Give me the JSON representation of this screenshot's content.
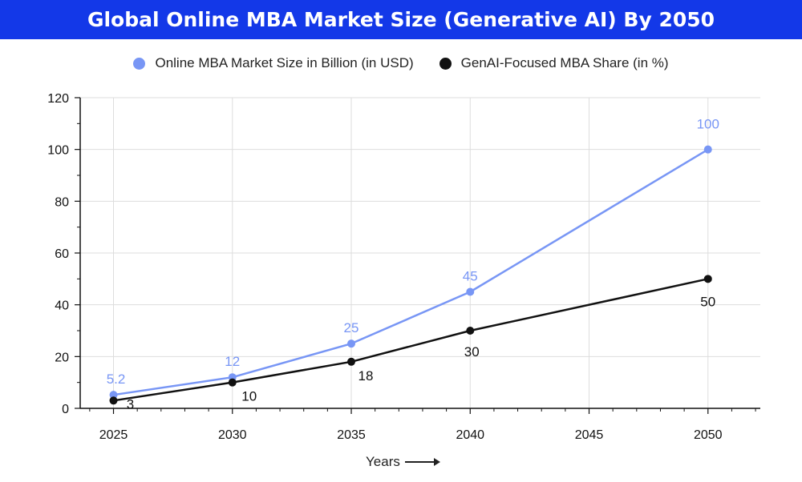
{
  "colors": {
    "title_bg": "#1338e8",
    "series_market": "#7896f5",
    "series_share": "#111111",
    "grid": "#dddddd"
  },
  "chart_data": {
    "type": "line",
    "title": "Global Online MBA Market Size (Generative AI) By 2050",
    "xlabel": "Years",
    "ylabel": "",
    "x": [
      2025,
      2030,
      2035,
      2040,
      2045,
      2050
    ],
    "xlim": [
      2023.6,
      2052.2
    ],
    "ylim": [
      0,
      120
    ],
    "y_ticks": [
      0,
      20,
      40,
      60,
      80,
      100,
      120
    ],
    "x_ticks": [
      2025,
      2030,
      2035,
      2040,
      2045,
      2050
    ],
    "grid": true,
    "legend_position": "top-center",
    "series": [
      {
        "name": "Online MBA Market Size in Billion (in USD)",
        "x": [
          2025,
          2030,
          2035,
          2040,
          2050
        ],
        "values": [
          5.2,
          12,
          25,
          45,
          100
        ],
        "labels": [
          "5.2",
          "12",
          "25",
          "45",
          "100"
        ],
        "color": "#7896f5"
      },
      {
        "name": "GenAI-Focused MBA Share (in %)",
        "x": [
          2025,
          2030,
          2035,
          2040,
          2050
        ],
        "values": [
          3,
          10,
          18,
          30,
          50
        ],
        "labels": [
          "3",
          "10",
          "18",
          "30",
          "50"
        ],
        "color": "#111111"
      }
    ]
  }
}
